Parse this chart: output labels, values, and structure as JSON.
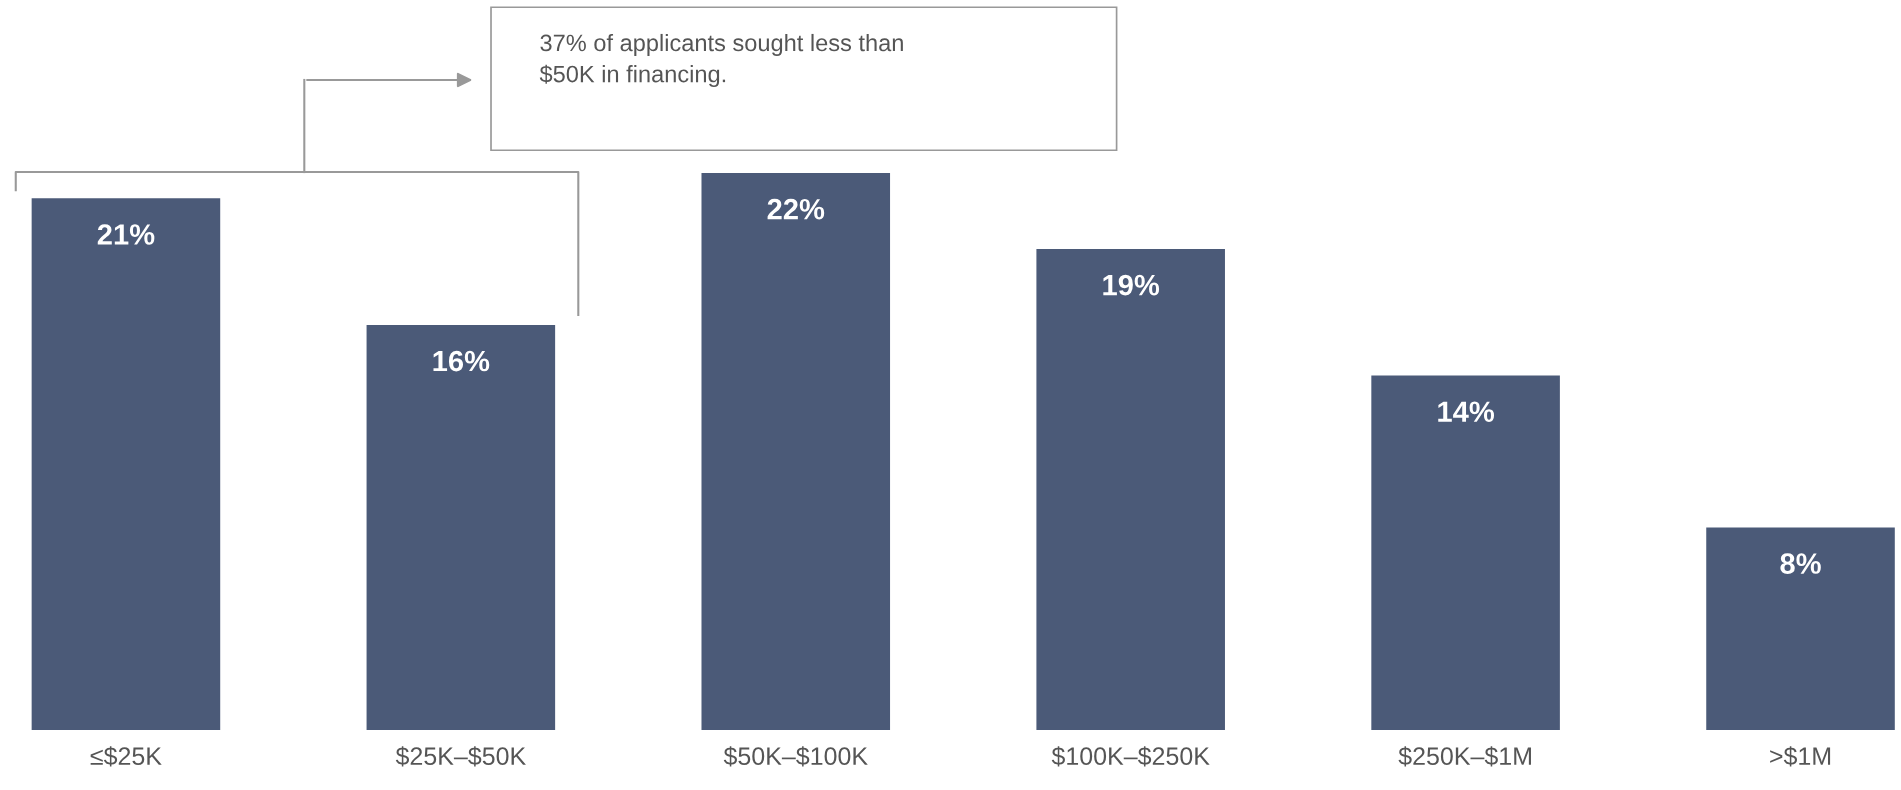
{
  "chart_data": {
    "type": "bar",
    "categories": [
      "≤$25K",
      "$25K–$50K",
      "$50K–$100K",
      "$100K–$250K",
      "$250K–$1M",
      ">$1M"
    ],
    "values": [
      21,
      16,
      22,
      19,
      14,
      8
    ],
    "color": "#4b5a78",
    "value_labels": [
      "21%",
      "16%",
      "22%",
      "19%",
      "14%",
      "8%"
    ],
    "grid": false,
    "legend": false,
    "annotations": [
      "37% of applicants sought less than\n$50K in financing."
    ]
  }
}
